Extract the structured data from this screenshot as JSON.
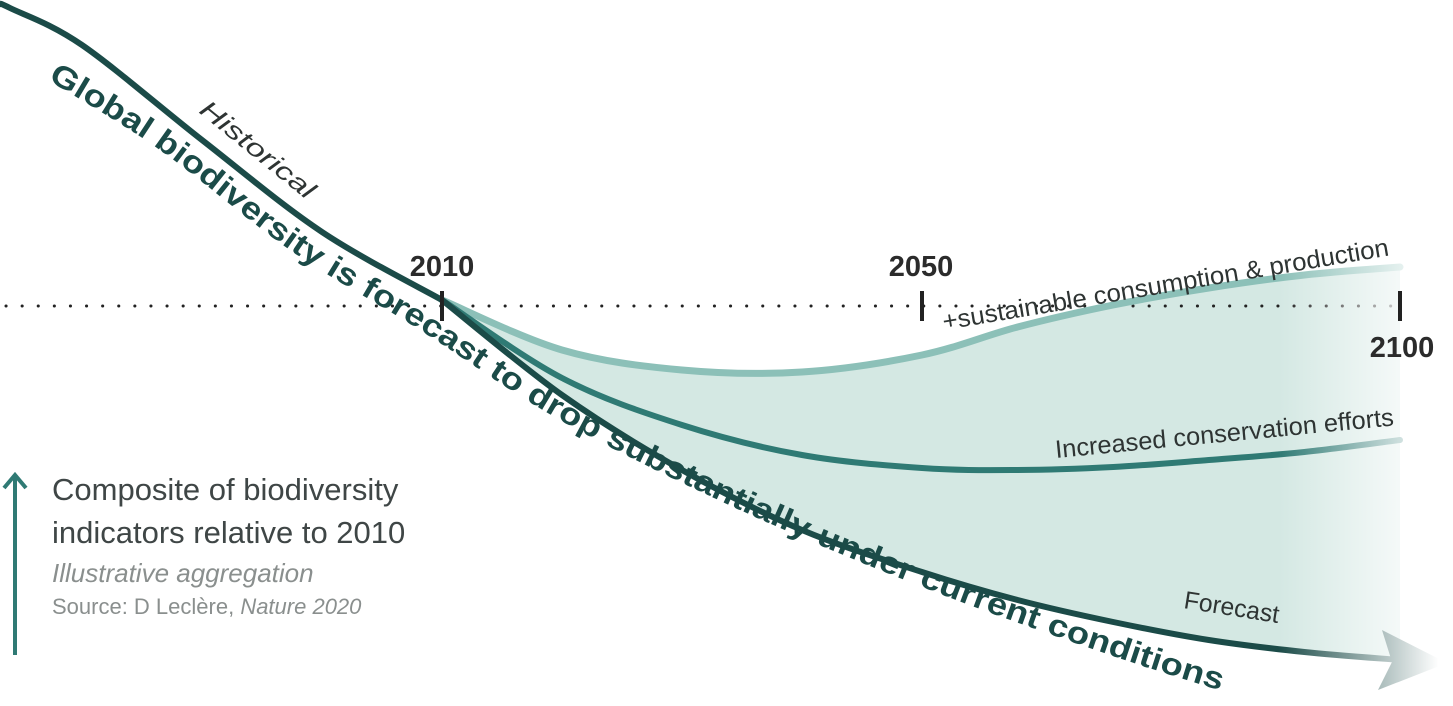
{
  "chart_data": {
    "type": "line",
    "title": "Global biodiversity is forecast to drop substantially under current conditions",
    "ylabel": "Composite of biodiversity indicators relative to 2010",
    "subtitle": "Illustrative aggregation",
    "source_prefix": "Source: D Leclère, ",
    "source_journal": "Nature 2020",
    "x_ticks": [
      2010,
      2050,
      2100
    ],
    "x_tick_labels": [
      "2010",
      "2050",
      "2100"
    ],
    "baseline_value": 0,
    "grid": false,
    "series": [
      {
        "name": "Historical",
        "color": "#1b4b48",
        "x": [
          1974,
          1980,
          1990,
          2000,
          2010
        ],
        "y": [
          2.92,
          2.55,
          1.6,
          0.68,
          0
        ]
      },
      {
        "name": "Forecast",
        "color": "#1b4b48",
        "x": [
          2010,
          2020,
          2030,
          2040,
          2050,
          2060,
          2070,
          2080,
          2090,
          2100
        ],
        "y": [
          0,
          -0.95,
          -1.7,
          -2.3,
          -2.72,
          -3.0,
          -3.22,
          -3.4,
          -3.52,
          -3.6
        ]
      },
      {
        "name": "Increased conservation efforts",
        "color": "#2f7a74",
        "x": [
          2010,
          2020,
          2030,
          2040,
          2050,
          2060,
          2070,
          2080,
          2090,
          2100
        ],
        "y": [
          0,
          -0.78,
          -1.25,
          -1.55,
          -1.68,
          -1.7,
          -1.67,
          -1.6,
          -1.52,
          -1.4
        ]
      },
      {
        "name": "+sustainable consumption & production",
        "color": "#8cc0b8",
        "x": [
          2010,
          2020,
          2030,
          2040,
          2050,
          2060,
          2070,
          2080,
          2090,
          2100
        ],
        "y": [
          0,
          -0.5,
          -0.7,
          -0.72,
          -0.55,
          -0.27,
          -0.05,
          0.12,
          0.25,
          0.33
        ]
      }
    ],
    "fill_color": "#d4e8e3"
  }
}
